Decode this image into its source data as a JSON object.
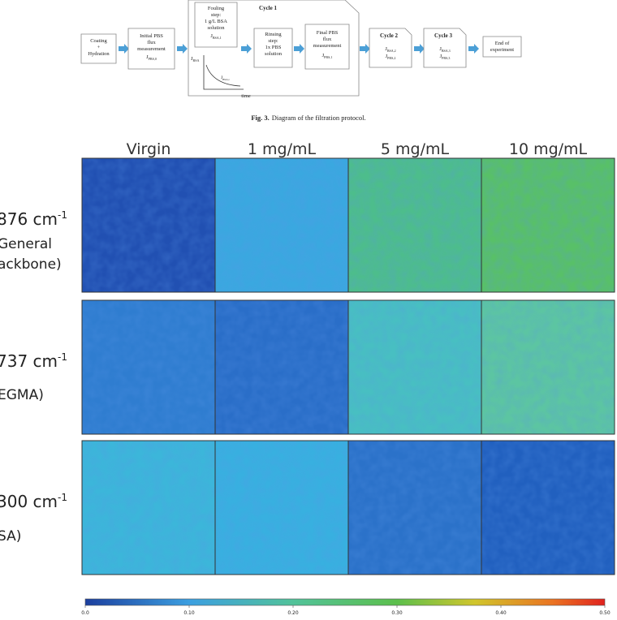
{
  "protocol": {
    "coating": [
      "Coating",
      "+",
      "Hydration"
    ],
    "initial": {
      "lines": [
        "Initial PBS",
        "flux",
        "measurement"
      ],
      "flux": {
        "symbol": "J",
        "sub": "PBS,0"
      }
    },
    "cycle1": {
      "title": "Cycle 1",
      "fouling": {
        "lines": [
          "Fouling",
          "step:",
          "1 g/L BSA",
          "solution"
        ],
        "flux": {
          "symbol": "J",
          "sub": "BSA,1"
        }
      },
      "plot": {
        "y_label": {
          "symbol": "J",
          "sub": "BSA"
        },
        "curve_label": {
          "symbol": "J",
          "sub": "BSA,t"
        },
        "x_label": "time"
      },
      "rinsing": {
        "lines": [
          "Rinsing",
          "step:",
          "1x PBS",
          "solution"
        ]
      },
      "final": {
        "lines": [
          "Final PBS",
          "flux",
          "measurement"
        ],
        "flux": {
          "symbol": "J",
          "sub": "PBS,1"
        }
      }
    },
    "cycle2": {
      "title": "Cycle 2",
      "fluxes": [
        {
          "symbol": "J",
          "sub": "BSA,2"
        },
        {
          "symbol": "J",
          "sub": "PBS,2"
        }
      ]
    },
    "cycle3": {
      "title": "Cycle 3",
      "fluxes": [
        {
          "symbol": "J",
          "sub": "BSA,3"
        },
        {
          "symbol": "J",
          "sub": "PBS,3"
        }
      ]
    },
    "end": [
      "End of",
      "experiment"
    ]
  },
  "caption": {
    "label": "Fig. 3.",
    "text": "Diagram of the filtration protocol."
  },
  "figure": {
    "columns": [
      "Virgin",
      "1 mg/mL",
      "5 mg/mL",
      "10 mg/mL"
    ],
    "rows": [
      {
        "label": "876 cm",
        "sup": "-1",
        "lines": [
          "General",
          "ackbone)"
        ]
      },
      {
        "label": "737 cm",
        "sup": "-1",
        "lines": [
          "EGMA)"
        ]
      },
      {
        "label": "300 cm",
        "sup": "-1",
        "lines": [
          "SA)"
        ]
      }
    ],
    "colorbar": {
      "lim": [
        0,
        0.5
      ],
      "ticks": [
        {
          "value": 0,
          "label": "0.0"
        },
        {
          "value": 0.1,
          "label": "0.10"
        },
        {
          "value": 0.2,
          "label": "0.20"
        },
        {
          "value": 0.3,
          "label": "0.30"
        },
        {
          "value": 0.4,
          "label": "0.40"
        },
        {
          "value": 0.5,
          "label": "0.50"
        }
      ]
    }
  }
}
